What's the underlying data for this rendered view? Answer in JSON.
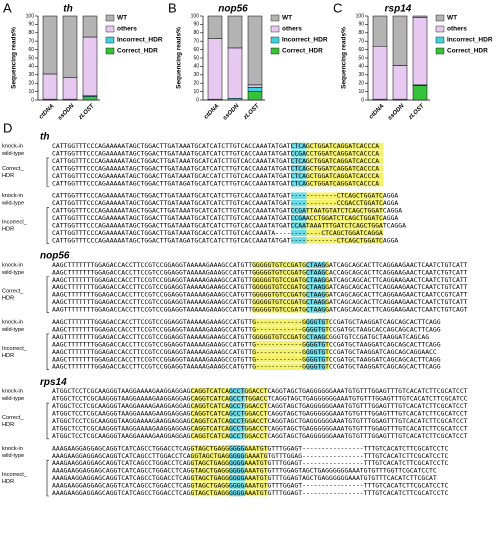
{
  "chart_data": [
    {
      "type": "stacked_bar",
      "label": "A",
      "title": "th",
      "y_label": "Sequencing reads%",
      "categories": [
        "ctDNA",
        "ssODN",
        "zLOST"
      ],
      "series": [
        {
          "name": "WT",
          "color": "#b3b3b3",
          "values": [
            69,
            73,
            25
          ]
        },
        {
          "name": "others",
          "color": "#e6c8f0",
          "values": [
            30,
            26,
            70
          ]
        },
        {
          "name": "Incorrect_HDR",
          "color": "#3fd2dc",
          "values": [
            1,
            1,
            1
          ]
        },
        {
          "name": "Correct_HDR",
          "color": "#36c23a",
          "values": [
            0,
            0,
            4
          ]
        }
      ],
      "ylim": [
        0,
        100
      ],
      "yticks": [
        0,
        10,
        20,
        30,
        40,
        50,
        60,
        70,
        80,
        90,
        100
      ]
    },
    {
      "type": "stacked_bar",
      "label": "B",
      "title": "nop56",
      "y_label": "Sequencing reads%",
      "categories": [
        "ctDNA",
        "ssODN",
        "zLOST"
      ],
      "series": [
        {
          "name": "WT",
          "color": "#b3b3b3",
          "values": [
            27,
            38,
            82
          ]
        },
        {
          "name": "others",
          "color": "#e6c8f0",
          "values": [
            72,
            60,
            3
          ]
        },
        {
          "name": "Incorrect_HDR",
          "color": "#3fd2dc",
          "values": [
            1,
            2,
            5
          ]
        },
        {
          "name": "Correct_HDR",
          "color": "#36c23a",
          "values": [
            0,
            0,
            10
          ]
        }
      ],
      "ylim": [
        0,
        100
      ],
      "yticks": [
        0,
        10,
        20,
        30,
        40,
        50,
        60,
        70,
        80,
        90,
        100
      ]
    },
    {
      "type": "stacked_bar",
      "label": "C",
      "title": "rsp14",
      "y_label": "Sequencing reads%",
      "categories": [
        "ctDNA",
        "ssODN",
        "zLOST"
      ],
      "series": [
        {
          "name": "WT",
          "color": "#b3b3b3",
          "values": [
            36,
            59,
            2
          ]
        },
        {
          "name": "others",
          "color": "#e6c8f0",
          "values": [
            63,
            40,
            80
          ]
        },
        {
          "name": "Incorrect_HDR",
          "color": "#3fd2dc",
          "values": [
            1,
            1,
            1
          ]
        },
        {
          "name": "Correct_HDR",
          "color": "#36c23a",
          "values": [
            0,
            0,
            17
          ]
        }
      ],
      "ylim": [
        0,
        100
      ],
      "yticks": [
        0,
        10,
        20,
        30,
        40,
        50,
        60,
        70,
        80,
        90,
        100
      ]
    }
  ],
  "alignments": {
    "label": "D",
    "genes": [
      {
        "name": "th",
        "blocks": [
          {
            "ref_labels": [
              "knock-in",
              "wild-type"
            ],
            "refs": [
              "CATTGGTTTCCCAGAAAAATAGCTGGACTTGATAAATGCATCATCTTGTCACCAAATATGATCTCAGCTGGATCAGGATCACCCA",
              "CATTGGTTTCCCAGAAAAATAGCTGGACTTGATAAATGCATCATCTTGTCACCAAATATGATCCGACCTGGATCAGGATCACCCA"
            ],
            "group_label": [
              "Correct_",
              "HDR"
            ],
            "rows": [
              "CATTGGTTTCCCAGAAAAATAGCTGGACTTGATAAATGCATCATCTTGTCACCAAATATGATCTCAGCTGGATCAGGATCACCCA",
              "CATTGGTTTCCCAGAAAAATAGCTGGACTTGATAAATGCATCATCTTGTCACCAAATATGATCTCAGCTGGATCAGGATCACCCA",
              "CATTGGTTTCCCAGAAAAATAGCTGGACTTGATAAATGCACCATCTTGTCACCAAATATGATCTCAGCTGGATCAGGATCACCCA",
              "CATTGGTTTCCCAGAAAAATAGCTGGACTTGATAGATGCATCATCTTGTCACCAAATATGATCTCAGCTGGATCAGGATCACCCA"
            ]
          },
          {
            "ref_labels": [
              "knock-in",
              "wild-type"
            ],
            "refs": [
              "CATTGGTTTCCCAGAAAAATAGCTGGACTTGATAAATGCATCATCTTGTCACCAAATATGAT------------CTCAGCTGGATCAGGA",
              "CATTGGTTTCCCAGAAAAATAGCTGGACTTGATAAATGCATCATCTTGTCACCAAATATGAT------------CCGACCTGGATCAGGA"
            ],
            "group_label": [
              "Incorrect_",
              "HDR"
            ],
            "rows": [
              "CATTGGTTTCCCAGAAAAATAGCTGGACTTGATAAATGCATCATCTTGTCACCAAATATGATCCGATTAATGTATCTCAGCTGGATCAGGA",
              "CATTGGTTTCCCAGAAAAATAGCTGGACTTGATAAATGCATCATCTTGTCACCAAATATGATCCGAACCTGGATCTCAGCTGGATCAGGA",
              "CATTGGTTTCCCAGAAAAATAGCTGGACTTGATAAATGCATCATCTTGTCACCAAATATGATCCAATAAATTTGATCTCAGCTGGATCAGGA",
              "CATTGGTTTCCCAGAAAAATAGCTGGACTTGATAAATGCACCATCTTGTCACCAAATA------------CTCAGCTGGATCAGGA",
              "CATTGGTTTCCCAGAAAAATAGCTGGACTTGATAGATGCATCATCTTGTCACCAAATATGAT------------CTCAGCTGGATCAGGA"
            ]
          }
        ]
      },
      {
        "name": "nop56",
        "blocks": [
          {
            "ref_labels": [
              "knock-in",
              "wild-type"
            ],
            "refs": [
              "AAGCTTTTTTTGGAGACCACCTTCCGTCCGGAGGTAAAAAGAAAGCCATGTTGGGGGTGTCCGATGCTAAGGATCAGCAGCACTTCAGGAAGAACTCAATCTGTCATT",
              "AAGCTTTTTTTGGAGACCACCTTCCGTCCGGAGGTAAAAAGAAAGCCATGTTGGGGGTGTCCGATGCTAAGCACCAGCAGCACTTCAGGAAGAACTCAATCTGTCATT"
            ],
            "group_label": [
              "Correct_",
              "HDR"
            ],
            "rows": [
              "AAGCTTTTTTTGGAGACCACCTTCCGTCCGGAGGTAAAAAGAAAGCCATGTTGGGGGTGTCCGATGCTAAGGATCAGCAGCACTTCAGGAAGAACTCAATCTGTCATT",
              "AAGCTTTTTTTGGAGACCACCTTCCGTCCGGAGGTAAAAAGAAAGCCATGTTGGGGGTGTCCGATGCTAAGGATCAGCAGCACTTCAGGAAGAACTCAATCTGTCATT",
              "AAGCTTTTTTTGGAGACCACCTTCCGTCCGGAGGTAAAAAGAAAGCCATGTTGGGGGTGTCCGATGCTAAGGATCAGCAGCACTTCAGGAAGAACTCAATCCGTCATT",
              "AAGCTTTTTTTGGAGACCACCTTCCGTCCGGAGGTAAAAAGAAAGCCATGTTGGGGGTGTCCGATGCTAAGGATCAGCAGCACTTCAGGAAGAACTCAATCTGTCATT",
              "AAGTTTTTTTTGGAGACCACCTTCCGTCCGGAGGTAAAAAGAAAGCCATGTTGGGGGTGTCCGATGCTAAGGATCAGCAGCACTTCAGGAAGAACTCAATCTGTCAGT"
            ]
          },
          {
            "ref_labels": [
              "knock-in",
              "wild-type"
            ],
            "refs": [
              "AAGCTTTTTTTGGAGACCACCTTCCGTCCGGAGGTAAAAAGAAAGCCATGTTG------------GGGGTGTCCGATGCTAAGGATCAGCAGCACTTCAGG",
              "AAGCTTTTTTTGGAGACCACCTTCCGTCCGGAGGTAAAAAGAAAGCCATGTTG------------GGGGTGTCCGATGCTAAGCACCAGCAGCACTTCAGG"
            ],
            "group_label": [
              "Incorrect_",
              "HDR"
            ],
            "rows": [
              "AAGTTTTTTTTGGAGACCACCTTCCGTCCGGAGGTAAAAAGAAAGCCATGTTGGGGGTGTCCGATGCTAAGCGGGTGTCCGATGCTAAGGATCAGCAG",
              "AAGCTTTTTTTGGAGACCACCTTCCGTCCGGAGGTAAAAAGAAAGCCATGTTG------------GGGGTGTCCGATGCTAAGGATCAGCAGCACTTCAGG",
              "AAGCTTTTTTTGGAGACCACCTTCCGTCCGGAGGTAAAAAGAAAGCCATGTTG------------GGGGTGTCCGATGCTAAGGATCAGCAGCAGGAACC",
              "AAGCTTTTTTTGGAGACCACCTTCCGTCCGGAGGTAAAAAGAAAGCCGTGTTG------------GGGGTGTCCGATGCTAAGGATCAGCAGCACTTCAGG",
              "AAGCTTTTTTTGGAGACCACCTTCCGTCCGGAGGTAAAAAGAAAGCCATGTTG------------GGGGTGTCCGATGCTAAGGATCAGCAGCACTTCAGG"
            ]
          }
        ]
      },
      {
        "name": "rps14",
        "blocks": [
          {
            "ref_labels": [
              "knock-in",
              "wild-type"
            ],
            "refs": [
              "ATGGCTCCTCGCAAGGGTAAGGAAAAGAAGGAGGAGCAGGTCATCAGCCTGGACCTCAGGTAGCTGAGGGGGGAAATGTGTTTGGAGTTTGTCACATCTTCGCATCCT",
              "ATGGCTCCTCGCAAGGGTAAGGAAAAGAAGGAGGAGCAGGTCATCAGCCTTGGACCTCAGGTAGCTGAGGGGGGAAATGTGTTTGGAGTTTGTCACATCTTCGCATCC"
            ],
            "group_label": [
              "Correct_",
              "HDR"
            ],
            "rows": [
              "ATGGCTCCTCGCAAGGGTAAGGAAAAGAAGGAGGAGCAGGTCATCAGCCTGGACCTCAGGTAGCTGAGGGGGGAAATGTGTTTGGAGTTTGTCACATCTTCGCATCCT",
              "ATGGCTCCTCGCAAGGGTAAGGAAAAGAAGGAGGAGCAGGTCATCAGCCTGGACCTCAGGTAGCTGAGGGGGGAAATGTGTTTGGAGTTTGTCACATCTTCGCATCCT",
              "ATGGCTCCTCGCAAGGGTAAGGAAAAGAAGGAGGAGCAGGTCATCAGCCTGGACCTCAGGTAGCTGAGGGGGGAAATGTGTTTGGAGTTTGTCACATCTTCGCATCCT",
              "ATGGCTCCTCGCAAGGGTAAGGAAAAGAAGGAGGAGCAGGTCATCAGCCTGGACCTCAGGTAGCTGAGGGGGGAAATGTGTTTGGAGTTTGTCACATCTTCGCATCCT",
              "ATGGCTCCTCGCAAGGGTAAGGAAAAGAAGGAGGAGCAGGTCATCAGCCTGGACCTCAGGTAGCTGAGGGGGGAAATGTGTTTGGAGTTTGTCACATCTTCGCATCCT"
            ]
          },
          {
            "ref_labels": [
              "knock-in",
              "wild-type"
            ],
            "refs": [
              "AAAGAAGGAGGAGCAGGTCATCAGCCTGGACCTCAGGTAGCTGAGGGGGGAAATGTGTTTGGAGT----------------TTTGTCACATCTTCGCATCCTC",
              "AAAGAAGGAGGAGCAGGTCATCAGCCTTGGACCTCAGGTAGCTGAGGGGGGAAATGTGTTTGGAG----------------TTTGTCACATCTTCGCATCCTC"
            ],
            "group_label": [
              "Incorrect_",
              "HDR"
            ],
            "rows": [
              "AAAGAAGGAGGAGCAGGTCATCAGCCTGGACCTCAGGTAGCTGAGGGGGGAAATGTGTTTGGAGT----------------TTTGTCACATCTTCGCATCCTC",
              "AAAGAAGGAGGAGCAGGTCATCAGCCTGGACCTCAGGTAGCTGAGGGGGGAAATGTGTTTGGAGTAGCTGAGGGGGGAAATGTGTTTGGTTCGCATCCTC",
              "AAAGAAGGAGGAGCAGGTCATCAGCCTGGACCTCAGGTAGCTGAGGGGGGAAATGTGTTTGGAGTAGCTGAGGGGGGAAATGTGTTTCACATCTTCGCAT",
              "AAAGAAGGAGGAGCAGGTCATCAGCCTGGACCTCAGGTAGCTGAGGGGGGAAATGTGTTTGGAGT----------------TTTGTCACATCTTCGCATCCTC",
              "AAAGAAGGAGGAGCAGGTCATCAGCCTGGACCTCAGGTAGCTGAGGGGGGAAATGTGTTTGGAGT----------------TTTGTCACATCTTCGCATCCTC"
            ]
          }
        ]
      }
    ]
  }
}
